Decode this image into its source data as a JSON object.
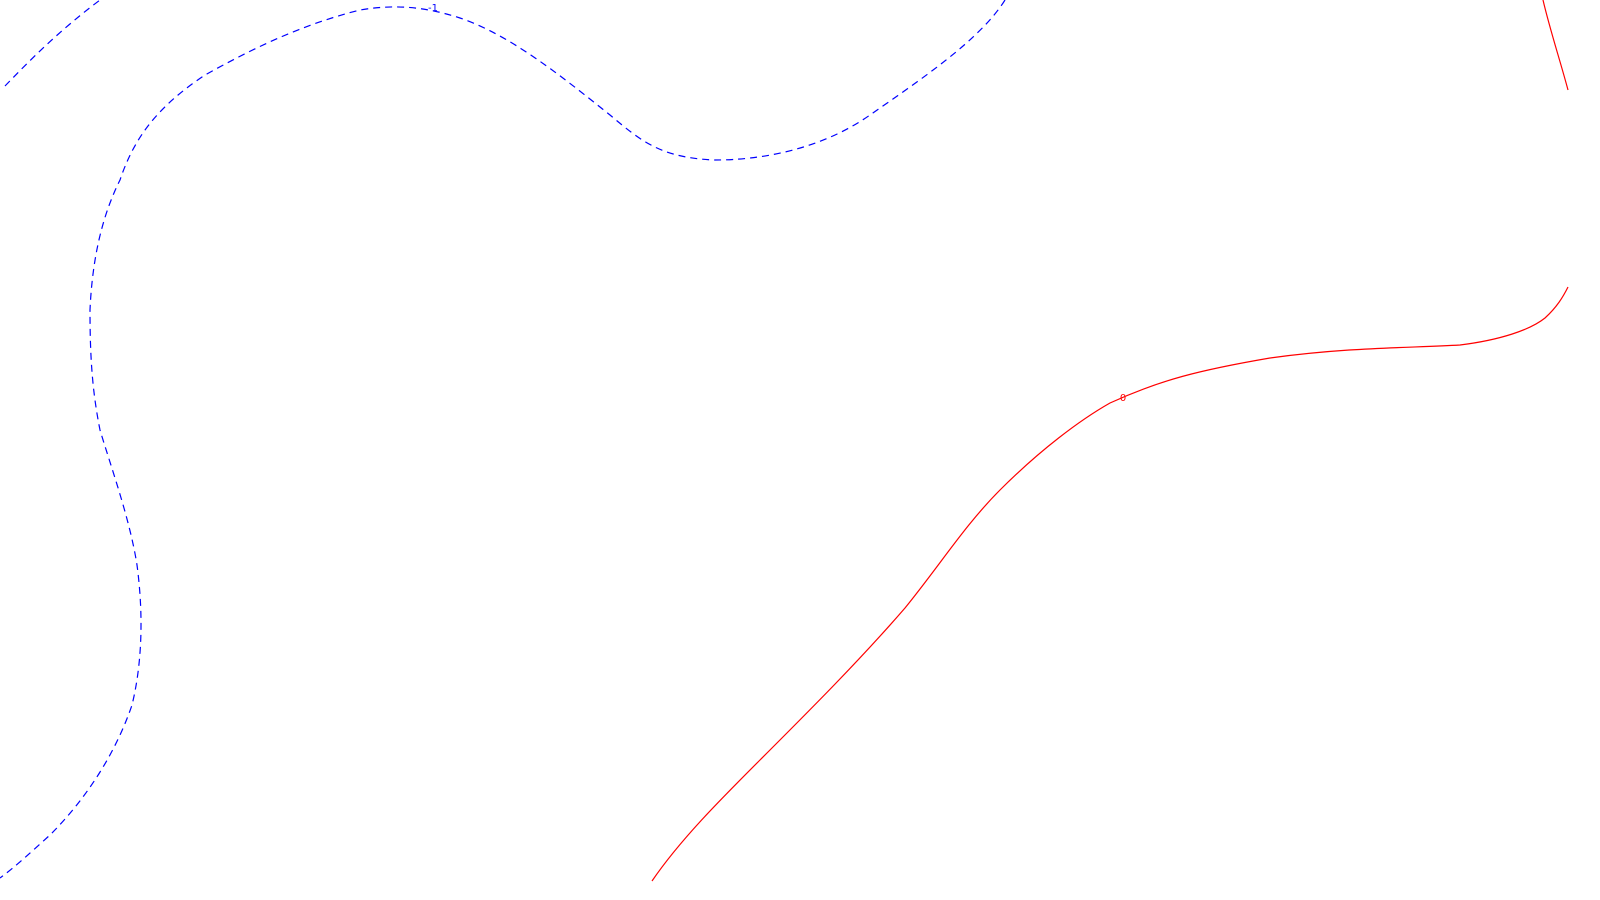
{
  "chart_data": {
    "type": "contour",
    "title": "",
    "xlabel": "",
    "ylabel": "",
    "grid": false,
    "levels": [
      {
        "level": -1,
        "label": "-1",
        "color": "#0000ff",
        "linestyle": "dashed"
      },
      {
        "level": 0,
        "label": "0",
        "color": "#ff0000",
        "linestyle": "solid"
      }
    ]
  }
}
